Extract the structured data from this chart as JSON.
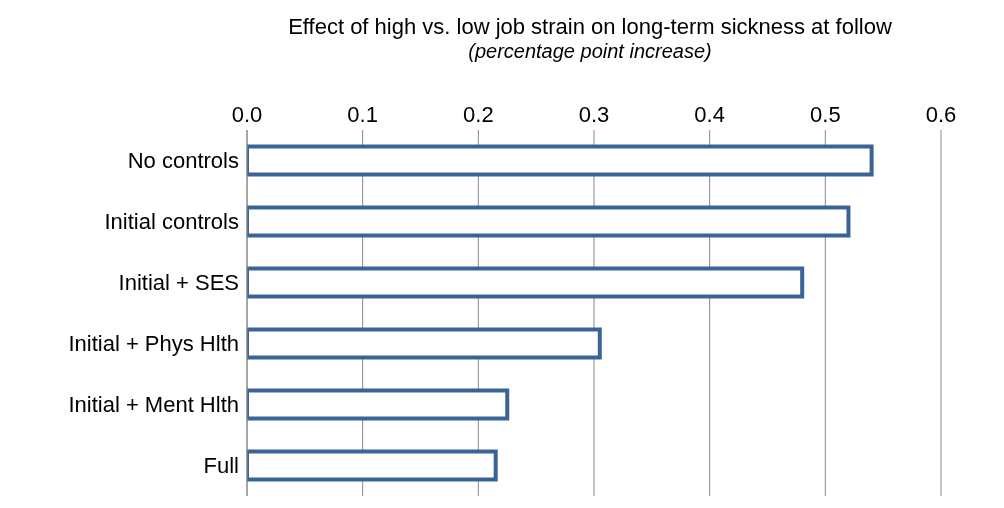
{
  "chart_data": {
    "type": "bar",
    "orientation": "horizontal",
    "title": "Effect of high vs. low job strain on long-term sickness at follow",
    "subtitle": "(percentage point increase)",
    "categories": [
      "No controls",
      "Initial controls",
      "Initial + SES",
      "Initial + Phys Hlth",
      "Initial + Ment Hlth",
      "Full"
    ],
    "values": [
      0.54,
      0.52,
      0.48,
      0.305,
      0.225,
      0.215
    ],
    "color": "#3a6496",
    "xlim": [
      0,
      0.6
    ],
    "xticks": [
      {
        "value": 0,
        "label": "0.0"
      },
      {
        "value": 0.1,
        "label": "0.1"
      },
      {
        "value": 0.2,
        "label": "0.2"
      },
      {
        "value": 0.3,
        "label": "0.3"
      },
      {
        "value": 0.4,
        "label": "0.4"
      },
      {
        "value": 0.5,
        "label": "0.5"
      },
      {
        "value": 0.6,
        "label": "0.6"
      }
    ],
    "grid": "x",
    "legend": false
  }
}
